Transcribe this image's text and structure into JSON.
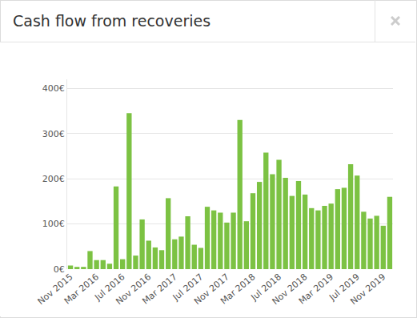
{
  "chart_data": {
    "type": "bar",
    "title": "Cash flow from recoveries",
    "categories": [
      "Nov 2015",
      null,
      null,
      null,
      "Mar 2016",
      null,
      null,
      null,
      "Jul 2016",
      null,
      null,
      null,
      "Nov 2016",
      null,
      null,
      null,
      "Mar 2017",
      null,
      null,
      null,
      "Jul 2017",
      null,
      null,
      null,
      "Nov 2017",
      null,
      null,
      null,
      "Mar 2018",
      null,
      null,
      null,
      "Jul 2018",
      null,
      null,
      null,
      "Nov 2018",
      null,
      null,
      null,
      "Mar 2019",
      null,
      null,
      null,
      "Jul 2019",
      null,
      null,
      null,
      "Nov 2019",
      null
    ],
    "values": [
      8,
      5,
      5,
      40,
      20,
      20,
      12,
      183,
      22,
      345,
      30,
      110,
      63,
      48,
      42,
      157,
      66,
      72,
      117,
      54,
      47,
      138,
      130,
      125,
      103,
      125,
      330,
      106,
      168,
      193,
      258,
      210,
      242,
      202,
      162,
      195,
      165,
      135,
      130,
      140,
      145,
      177,
      180,
      232,
      207,
      127,
      112,
      118,
      96,
      160
    ],
    "color": "#7cc243",
    "ylim": [
      0,
      420
    ],
    "yticks": [
      {
        "value": 0,
        "label": "0€"
      },
      {
        "value": 100,
        "label": "100€"
      },
      {
        "value": 200,
        "label": "200€"
      },
      {
        "value": 300,
        "label": "300€"
      },
      {
        "value": 400,
        "label": "400€"
      }
    ],
    "grid": true
  }
}
